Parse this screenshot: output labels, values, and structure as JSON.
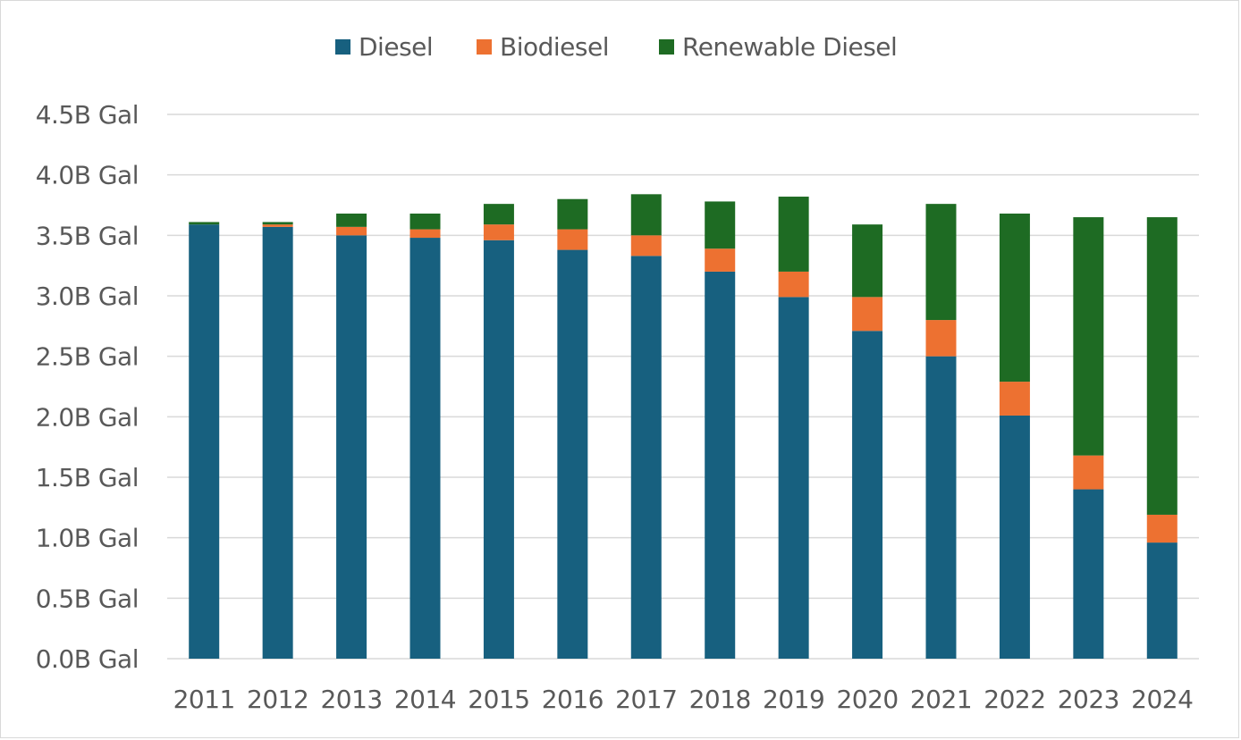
{
  "chart_data": {
    "type": "bar",
    "stacked": true,
    "title": "",
    "xlabel": "",
    "ylabel": "",
    "categories": [
      "2011",
      "2012",
      "2013",
      "2014",
      "2015",
      "2016",
      "2017",
      "2018",
      "2019",
      "2020",
      "2021",
      "2022",
      "2023",
      "2024"
    ],
    "series": [
      {
        "name": "Diesel",
        "color": "#17607f",
        "values": [
          3.59,
          3.57,
          3.5,
          3.48,
          3.46,
          3.38,
          3.33,
          3.2,
          2.99,
          2.71,
          2.5,
          2.01,
          1.4,
          0.96
        ]
      },
      {
        "name": "Biodiesel",
        "color": "#ed7131",
        "values": [
          0.0,
          0.02,
          0.07,
          0.07,
          0.13,
          0.17,
          0.17,
          0.19,
          0.21,
          0.28,
          0.3,
          0.28,
          0.28,
          0.23
        ]
      },
      {
        "name": "Renewable Diesel",
        "color": "#1e6b23",
        "values": [
          0.02,
          0.02,
          0.11,
          0.13,
          0.17,
          0.25,
          0.34,
          0.39,
          0.62,
          0.6,
          0.96,
          1.39,
          1.97,
          2.46
        ]
      }
    ],
    "ylim": [
      0,
      4.5
    ],
    "yticks": [
      "0.0B Gal",
      "0.5B Gal",
      "1.0B Gal",
      "1.5B Gal",
      "2.0B Gal",
      "2.5B Gal",
      "3.0B Gal",
      "3.5B Gal",
      "4.0B Gal",
      "4.5B Gal"
    ],
    "ytick_values": [
      0,
      0.5,
      1.0,
      1.5,
      2.0,
      2.5,
      3.0,
      3.5,
      4.0,
      4.5
    ],
    "grid": true,
    "legend_position": "top"
  }
}
